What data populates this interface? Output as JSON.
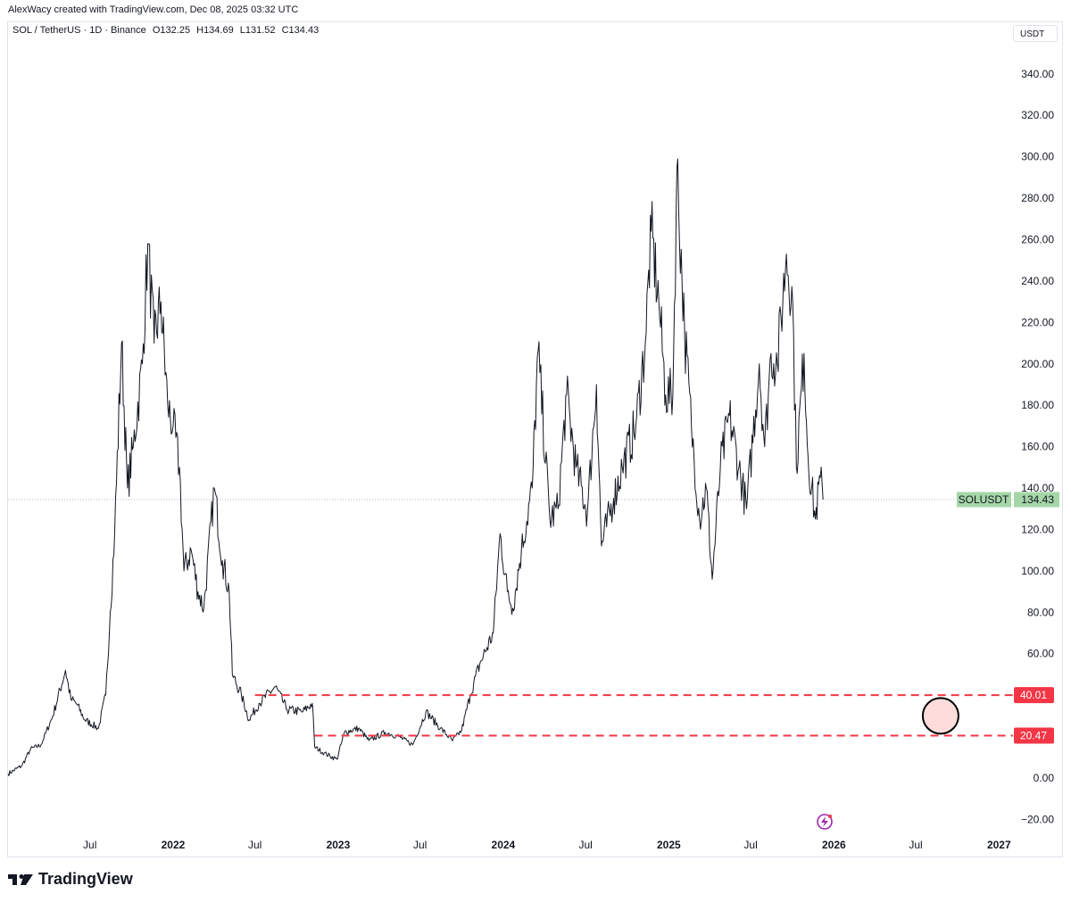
{
  "header": {
    "credit": "AlexWacy created with TradingView.com, Dec 08, 2025 03:32 UTC",
    "symbol": "SOL / TetherUS · 1D · Binance",
    "open": "O132.25",
    "high": "H134.69",
    "low": "L131.52",
    "close": "C134.43",
    "currency": "USDT"
  },
  "brand": {
    "name": "TradingView",
    "icon": "tradingview-logo-icon"
  },
  "colors": {
    "price_line": "#131722",
    "level": "#f23645",
    "last_price_bg": "#a5d6a7",
    "target_circle_fill": "#fddcdc",
    "lightning": "#9c27b0"
  },
  "chart_data": {
    "type": "line",
    "symbol": "SOLUSDT",
    "last_price": 134.43,
    "last_price_label": "134.43",
    "ylim": [
      -25,
      355
    ],
    "yticks": [
      340,
      320,
      300,
      280,
      260,
      240,
      220,
      200,
      180,
      160,
      140,
      120,
      100,
      80,
      60,
      40,
      20,
      0,
      -20
    ],
    "ytick_labels": [
      "340.00",
      "320.00",
      "300.00",
      "280.00",
      "260.00",
      "240.00",
      "220.00",
      "200.00",
      "180.00",
      "160.00",
      "140.00",
      "120.00",
      "100.00",
      "80.00",
      "60.00",
      "40.00",
      "20.00",
      "0.00",
      "−20.00"
    ],
    "xlim": [
      "2021-01-01",
      "2027-02-01"
    ],
    "xticks": [
      {
        "date": "2021-07-01",
        "label": "Jul",
        "bold": false
      },
      {
        "date": "2022-01-01",
        "label": "2022",
        "bold": true
      },
      {
        "date": "2022-07-01",
        "label": "Jul",
        "bold": false
      },
      {
        "date": "2023-01-01",
        "label": "2023",
        "bold": true
      },
      {
        "date": "2023-07-01",
        "label": "Jul",
        "bold": false
      },
      {
        "date": "2024-01-01",
        "label": "2024",
        "bold": true
      },
      {
        "date": "2024-07-01",
        "label": "Jul",
        "bold": false
      },
      {
        "date": "2025-01-01",
        "label": "2025",
        "bold": true
      },
      {
        "date": "2025-07-01",
        "label": "Jul",
        "bold": false
      },
      {
        "date": "2026-01-01",
        "label": "2026",
        "bold": true
      },
      {
        "date": "2026-07-01",
        "label": "Jul",
        "bold": false
      },
      {
        "date": "2027-01-01",
        "label": "2027",
        "bold": true
      }
    ],
    "series": [
      {
        "points": [
          [
            "2021-01-01",
            2
          ],
          [
            "2021-02-01",
            6
          ],
          [
            "2021-02-20",
            14
          ],
          [
            "2021-03-15",
            16
          ],
          [
            "2021-04-10",
            30
          ],
          [
            "2021-05-08",
            52
          ],
          [
            "2021-05-20",
            38
          ],
          [
            "2021-06-01",
            36
          ],
          [
            "2021-06-20",
            28
          ],
          [
            "2021-07-20",
            24
          ],
          [
            "2021-08-05",
            40
          ],
          [
            "2021-08-15",
            80
          ],
          [
            "2021-08-25",
            120
          ],
          [
            "2021-09-09",
            210
          ],
          [
            "2021-09-22",
            140
          ],
          [
            "2021-10-05",
            160
          ],
          [
            "2021-10-25",
            200
          ],
          [
            "2021-11-06",
            258
          ],
          [
            "2021-11-20",
            210
          ],
          [
            "2021-12-05",
            230
          ],
          [
            "2021-12-20",
            180
          ],
          [
            "2022-01-01",
            170
          ],
          [
            "2022-01-15",
            150
          ],
          [
            "2022-01-25",
            100
          ],
          [
            "2022-02-10",
            110
          ],
          [
            "2022-02-25",
            90
          ],
          [
            "2022-03-10",
            82
          ],
          [
            "2022-04-02",
            140
          ],
          [
            "2022-04-20",
            105
          ],
          [
            "2022-05-05",
            90
          ],
          [
            "2022-05-12",
            50
          ],
          [
            "2022-06-01",
            40
          ],
          [
            "2022-06-18",
            28
          ],
          [
            "2022-07-10",
            36
          ],
          [
            "2022-08-15",
            44
          ],
          [
            "2022-09-10",
            33
          ],
          [
            "2022-10-15",
            32
          ],
          [
            "2022-11-05",
            36
          ],
          [
            "2022-11-10",
            15
          ],
          [
            "2022-12-01",
            12
          ],
          [
            "2022-12-29",
            9
          ],
          [
            "2023-01-15",
            22
          ],
          [
            "2023-02-15",
            24
          ],
          [
            "2023-03-10",
            18
          ],
          [
            "2023-04-15",
            22
          ],
          [
            "2023-05-15",
            20
          ],
          [
            "2023-06-15",
            16
          ],
          [
            "2023-07-14",
            32
          ],
          [
            "2023-08-15",
            24
          ],
          [
            "2023-09-11",
            18
          ],
          [
            "2023-10-01",
            23
          ],
          [
            "2023-10-20",
            40
          ],
          [
            "2023-11-10",
            55
          ],
          [
            "2023-12-10",
            70
          ],
          [
            "2023-12-25",
            118
          ],
          [
            "2024-01-10",
            90
          ],
          [
            "2024-01-22",
            82
          ],
          [
            "2024-02-10",
            110
          ],
          [
            "2024-03-05",
            140
          ],
          [
            "2024-03-18",
            206
          ],
          [
            "2024-04-13",
            125
          ],
          [
            "2024-05-01",
            130
          ],
          [
            "2024-05-20",
            185
          ],
          [
            "2024-06-10",
            150
          ],
          [
            "2024-07-05",
            128
          ],
          [
            "2024-07-25",
            190
          ],
          [
            "2024-08-05",
            112
          ],
          [
            "2024-09-01",
            135
          ],
          [
            "2024-09-20",
            150
          ],
          [
            "2024-10-20",
            170
          ],
          [
            "2024-11-10",
            210
          ],
          [
            "2024-11-23",
            264
          ],
          [
            "2024-12-10",
            230
          ],
          [
            "2024-12-25",
            185
          ],
          [
            "2025-01-10",
            185
          ],
          [
            "2025-01-19",
            295
          ],
          [
            "2025-02-05",
            215
          ],
          [
            "2025-02-20",
            170
          ],
          [
            "2025-03-10",
            125
          ],
          [
            "2025-03-25",
            140
          ],
          [
            "2025-04-07",
            96
          ],
          [
            "2025-04-25",
            150
          ],
          [
            "2025-05-15",
            175
          ],
          [
            "2025-06-05",
            150
          ],
          [
            "2025-06-22",
            130
          ],
          [
            "2025-07-20",
            200
          ],
          [
            "2025-08-01",
            160
          ],
          [
            "2025-08-15",
            205
          ],
          [
            "2025-08-29",
            200
          ],
          [
            "2025-09-18",
            253
          ],
          [
            "2025-10-02",
            230
          ],
          [
            "2025-10-10",
            150
          ],
          [
            "2025-10-27",
            205
          ],
          [
            "2025-11-05",
            155
          ],
          [
            "2025-11-21",
            125
          ],
          [
            "2025-12-02",
            145
          ],
          [
            "2025-12-08",
            134.43
          ]
        ]
      }
    ],
    "levels": [
      {
        "value": 40.01,
        "label": "40.01",
        "from": "2022-07-01"
      },
      {
        "value": 20.47,
        "label": "20.47",
        "from": "2022-11-10"
      }
    ],
    "annotations": [
      {
        "type": "circle",
        "date": "2026-08-25",
        "value": 30
      }
    ]
  }
}
